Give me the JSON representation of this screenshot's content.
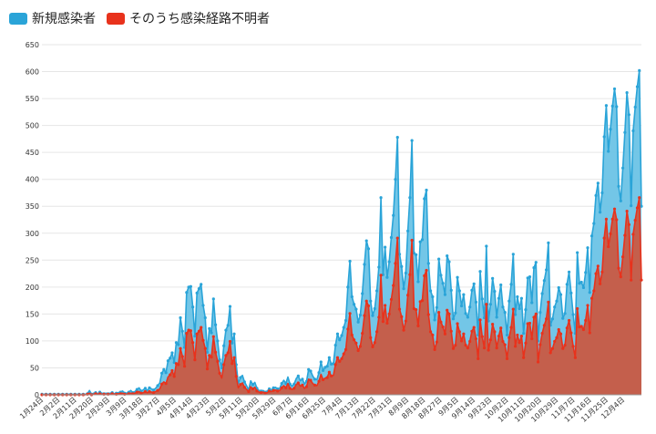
{
  "chart_data": {
    "type": "area",
    "ylim": [
      0,
      650
    ],
    "yticks": [
      0,
      50,
      100,
      150,
      200,
      250,
      300,
      350,
      400,
      450,
      500,
      550,
      600,
      650
    ],
    "xticks": [
      "1月24日",
      "2月2日",
      "2月11日",
      "2月20日",
      "2月29日",
      "3月9日",
      "3月18日",
      "3月27日",
      "4月5日",
      "4月14日",
      "4月23日",
      "5月2日",
      "5月11日",
      "5月20日",
      "5月29日",
      "6月7日",
      "6月16日",
      "6月25日",
      "7月4日",
      "7月13日",
      "7月22日",
      "7月31日",
      "8月9日",
      "8月18日",
      "8月27日",
      "9月5日",
      "9月14日",
      "9月23日",
      "10月2日",
      "10月11日",
      "10月20日",
      "10月29日",
      "11月7日",
      "11月16日",
      "11月25日",
      "12月4日"
    ],
    "grid": true,
    "legend_position": "top-left",
    "x_start": "1月24日",
    "x_end": "12月7日",
    "series": [
      {
        "name": "新規感染者",
        "color": "#2aa4d8",
        "fill": "#6cc3e6",
        "values": [
          1,
          1,
          1,
          1,
          1,
          1,
          1,
          1,
          1,
          1,
          1,
          1,
          1,
          1,
          1,
          1,
          1,
          1,
          1,
          1,
          1,
          1,
          2,
          8,
          1,
          3,
          4,
          2,
          5,
          3,
          2,
          3,
          2,
          3,
          4,
          2,
          3,
          4,
          5,
          7,
          3,
          3,
          5,
          8,
          4,
          6,
          10,
          13,
          7,
          9,
          12,
          8,
          13,
          11,
          9,
          12,
          17,
          22,
          40,
          47,
          41,
          63,
          68,
          78,
          60,
          97,
          93,
          143,
          118,
          88,
          190,
          200,
          201,
          163,
          109,
          189,
          197,
          205,
          166,
          143,
          79,
          123,
          115,
          178,
          130,
          100,
          65,
          50,
          91,
          120,
          129,
          164,
          96,
          113,
          56,
          21,
          32,
          36,
          24,
          17,
          9,
          26,
          19,
          23,
          12,
          8,
          7,
          8,
          5,
          7,
          11,
          9,
          13,
          14,
          11,
          12,
          21,
          27,
          21,
          33,
          20,
          16,
          20,
          30,
          35,
          26,
          29,
          20,
          25,
          47,
          44,
          35,
          29,
          28,
          41,
          61,
          45,
          51,
          53,
          69,
          57,
          58,
          92,
          113,
          102,
          110,
          125,
          138,
          200,
          248,
          182,
          168,
          159,
          135,
          148,
          188,
          242,
          286,
          271,
          174,
          147,
          160,
          193,
          237,
          366,
          223,
          274,
          218,
          247,
          292,
          333,
          400,
          478,
          261,
          238,
          197,
          226,
          304,
          366,
          472,
          263,
          260,
          210,
          284,
          288,
          364,
          380,
          244,
          193,
          182,
          139,
          162,
          252,
          222,
          207,
          186,
          258,
          247,
          194,
          141,
          152,
          218,
          193,
          165,
          186,
          151,
          144,
          163,
          194,
          206,
          172,
          111,
          229,
          178,
          143,
          276,
          137,
          168,
          216,
          192,
          144,
          179,
          204,
          163,
          153,
          111,
          174,
          205,
          261,
          149,
          182,
          160,
          179,
          114,
          158,
          217,
          219,
          171,
          236,
          246,
          100,
          153,
          188,
          212,
          232,
          282,
          129,
          141,
          163,
          174,
          199,
          186,
          142,
          151,
          205,
          228,
          189,
          149,
          114,
          264,
          207,
          209,
          199,
          227,
          273,
          190,
          295,
          318,
          370,
          393,
          339,
          375,
          479,
          537,
          452,
          493,
          536,
          568,
          535,
          387,
          360,
          421,
          487,
          561,
          520,
          351,
          490,
          534,
          572,
          602,
          350
        ]
      },
      {
        "name": "そのうち感染経路不明者",
        "color": "#e8321c",
        "fill": "#c85a43",
        "values": [
          0,
          0,
          0,
          0,
          0,
          0,
          0,
          0,
          0,
          0,
          0,
          0,
          0,
          0,
          0,
          0,
          0,
          0,
          0,
          0,
          0,
          0,
          1,
          3,
          0,
          1,
          2,
          1,
          2,
          1,
          1,
          1,
          1,
          1,
          2,
          1,
          1,
          2,
          2,
          3,
          1,
          1,
          2,
          3,
          2,
          3,
          5,
          6,
          3,
          4,
          6,
          4,
          6,
          5,
          4,
          6,
          8,
          11,
          20,
          24,
          21,
          33,
          37,
          45,
          34,
          58,
          56,
          86,
          71,
          53,
          114,
          120,
          119,
          97,
          65,
          113,
          118,
          125,
          101,
          86,
          48,
          73,
          70,
          108,
          79,
          62,
          40,
          31,
          56,
          73,
          78,
          99,
          58,
          69,
          34,
          13,
          19,
          22,
          14,
          10,
          6,
          15,
          11,
          14,
          7,
          5,
          4,
          5,
          3,
          4,
          7,
          6,
          8,
          9,
          7,
          8,
          13,
          17,
          13,
          21,
          12,
          10,
          12,
          19,
          22,
          16,
          18,
          12,
          15,
          29,
          27,
          21,
          18,
          17,
          25,
          38,
          28,
          31,
          32,
          42,
          35,
          36,
          56,
          69,
          62,
          67,
          76,
          84,
          122,
          151,
          111,
          102,
          96,
          82,
          90,
          114,
          147,
          174,
          165,
          106,
          89,
          97,
          117,
          144,
          222,
          136,
          166,
          133,
          150,
          177,
          203,
          244,
          291,
          159,
          145,
          120,
          137,
          185,
          223,
          287,
          160,
          158,
          128,
          173,
          175,
          221,
          231,
          149,
          117,
          111,
          84,
          98,
          153,
          135,
          126,
          113,
          157,
          150,
          118,
          86,
          92,
          132,
          117,
          100,
          113,
          92,
          87,
          99,
          118,
          125,
          104,
          67,
          139,
          108,
          87,
          168,
          83,
          102,
          131,
          117,
          87,
          109,
          124,
          99,
          93,
          67,
          106,
          125,
          159,
          90,
          111,
          97,
          109,
          69,
          96,
          132,
          133,
          104,
          144,
          150,
          61,
          93,
          114,
          129,
          141,
          172,
          78,
          86,
          99,
          106,
          121,
          113,
          86,
          92,
          124,
          138,
          115,
          90,
          69,
          160,
          126,
          127,
          121,
          138,
          166,
          115,
          179,
          193,
          225,
          239,
          206,
          228,
          291,
          326,
          275,
          299,
          326,
          345,
          325,
          235,
          219,
          256,
          296,
          341,
          316,
          213,
          298,
          324,
          347,
          366,
          213
        ]
      }
    ]
  }
}
